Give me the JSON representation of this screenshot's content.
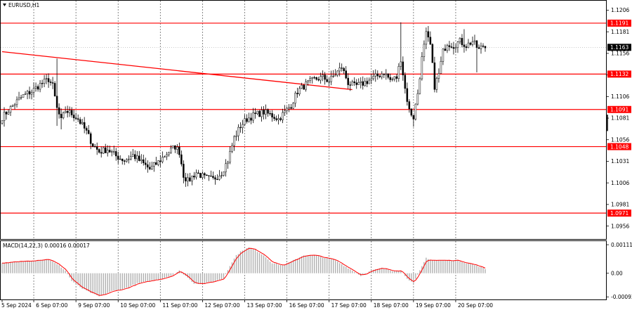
{
  "chart_data": {
    "type": "candlestick",
    "symbol_label": "EURUSD,H1",
    "price_axis": {
      "ylim": [
        1.0941,
        1.1217
      ],
      "ticks": [
        "1.1206",
        "1.1181",
        "1.1156",
        "1.1131",
        "1.1106",
        "1.1081",
        "1.1056",
        "1.1031",
        "1.1006",
        "1.0981",
        "1.0956"
      ],
      "tick_values": [
        1.1206,
        1.1181,
        1.1156,
        1.1131,
        1.1106,
        1.1081,
        1.1056,
        1.1031,
        1.1006,
        1.0981,
        1.0956
      ]
    },
    "current_price": {
      "label": "1.1163",
      "value": 1.1163
    },
    "x_axis": {
      "labels": [
        "5 Sep 2024",
        "6 Sep 07:00",
        "9 Sep 07:00",
        "10 Sep 07:00",
        "11 Sep 07:00",
        "12 Sep 07:00",
        "13 Sep 07:00",
        "16 Sep 07:00",
        "17 Sep 07:00",
        "18 Sep 07:00",
        "19 Sep 07:00",
        "20 Sep 07:00"
      ],
      "num_bars": 230,
      "label_bar_index": [
        0,
        15,
        35,
        55,
        75,
        95,
        115,
        135,
        155,
        175,
        195,
        215
      ]
    },
    "levels": [
      {
        "label": "1.1191",
        "value": 1.1191
      },
      {
        "label": "1.1132",
        "value": 1.1132
      },
      {
        "label": "1.1091",
        "value": 1.1091
      },
      {
        "label": "1.1048",
        "value": 1.1048
      },
      {
        "label": "1.0971",
        "value": 1.0971
      }
    ],
    "trendline": {
      "from": {
        "bar": 0,
        "price": 1.1158
      },
      "to": {
        "bar": 166,
        "price": 1.1114
      }
    },
    "price_path": [
      [
        0,
        1.1082
      ],
      [
        3,
        1.109
      ],
      [
        6,
        1.1098
      ],
      [
        10,
        1.1107
      ],
      [
        14,
        1.1112
      ],
      [
        18,
        1.112
      ],
      [
        22,
        1.1126
      ],
      [
        24,
        1.1118
      ],
      [
        26,
        1.1092
      ],
      [
        28,
        1.1078
      ],
      [
        30,
        1.109
      ],
      [
        33,
        1.1086
      ],
      [
        36,
        1.108
      ],
      [
        40,
        1.1065
      ],
      [
        43,
        1.105
      ],
      [
        46,
        1.1042
      ],
      [
        50,
        1.1045
      ],
      [
        54,
        1.1037
      ],
      [
        58,
        1.1032
      ],
      [
        62,
        1.1038
      ],
      [
        66,
        1.103
      ],
      [
        70,
        1.1022
      ],
      [
        74,
        1.103
      ],
      [
        78,
        1.104
      ],
      [
        82,
        1.1048
      ],
      [
        84,
        1.1042
      ],
      [
        86,
        1.1015
      ],
      [
        88,
        1.1008
      ],
      [
        92,
        1.1018
      ],
      [
        96,
        1.1012
      ],
      [
        100,
        1.101
      ],
      [
        104,
        1.1018
      ],
      [
        107,
        1.1032
      ],
      [
        110,
        1.1058
      ],
      [
        113,
        1.1072
      ],
      [
        116,
        1.108
      ],
      [
        120,
        1.1085
      ],
      [
        124,
        1.1088
      ],
      [
        128,
        1.1084
      ],
      [
        131,
        1.108
      ],
      [
        134,
        1.1088
      ],
      [
        137,
        1.1096
      ],
      [
        140,
        1.1112
      ],
      [
        144,
        1.112
      ],
      [
        148,
        1.1126
      ],
      [
        152,
        1.1128
      ],
      [
        155,
        1.1124
      ],
      [
        158,
        1.1132
      ],
      [
        161,
        1.114
      ],
      [
        164,
        1.1122
      ],
      [
        167,
        1.1118
      ],
      [
        170,
        1.112
      ],
      [
        174,
        1.1125
      ],
      [
        178,
        1.113
      ],
      [
        181,
        1.1134
      ],
      [
        184,
        1.1125
      ],
      [
        187,
        1.1128
      ],
      [
        189,
        1.115
      ],
      [
        191,
        1.1115
      ],
      [
        193,
        1.109
      ],
      [
        195,
        1.1082
      ],
      [
        197,
        1.111
      ],
      [
        199,
        1.115
      ],
      [
        201,
        1.1178
      ],
      [
        203,
        1.1165
      ],
      [
        205,
        1.1118
      ],
      [
        207,
        1.1132
      ],
      [
        209,
        1.1158
      ],
      [
        211,
        1.1168
      ],
      [
        214,
        1.1165
      ],
      [
        217,
        1.117
      ],
      [
        220,
        1.1165
      ],
      [
        223,
        1.117
      ],
      [
        226,
        1.116
      ],
      [
        228,
        1.1165
      ],
      [
        229,
        1.1163
      ]
    ],
    "spikes": [
      {
        "bar": 26,
        "high": 1.115,
        "low": 1.1072
      },
      {
        "bar": 28,
        "low": 1.1068
      },
      {
        "bar": 88,
        "low": 1.1002
      },
      {
        "bar": 189,
        "high": 1.1192
      },
      {
        "bar": 195,
        "low": 1.1071
      },
      {
        "bar": 201,
        "high": 1.1186
      },
      {
        "bar": 219,
        "high": 1.1184
      },
      {
        "bar": 225,
        "low": 1.1134
      }
    ],
    "macd": {
      "label": "MACD(14,22,3) 0.00016 0.00017",
      "ylim": [
        -0.00102,
        0.00125
      ],
      "ticks": [
        "0.00111",
        "0.00",
        "-0.00092"
      ],
      "tick_values": [
        0.00111,
        0.0,
        -0.00092
      ],
      "histogram_path": [
        [
          0,
          0.0004
        ],
        [
          8,
          0.00045
        ],
        [
          15,
          0.0005
        ],
        [
          22,
          0.00055
        ],
        [
          27,
          0.0003
        ],
        [
          30,
          0.0001
        ],
        [
          33,
          -0.0003
        ],
        [
          38,
          -0.0006
        ],
        [
          43,
          -0.0008
        ],
        [
          46,
          -0.0009
        ],
        [
          52,
          -0.0007
        ],
        [
          58,
          -0.0006
        ],
        [
          64,
          -0.0004
        ],
        [
          70,
          -0.0003
        ],
        [
          76,
          -0.0002
        ],
        [
          80,
          -0.0001
        ],
        [
          84,
          0.0001
        ],
        [
          87,
          -0.0001
        ],
        [
          91,
          -0.0004
        ],
        [
          96,
          -0.0004
        ],
        [
          101,
          -0.0003
        ],
        [
          105,
          -0.0002
        ],
        [
          108,
          0.0003
        ],
        [
          111,
          0.0007
        ],
        [
          114,
          0.0009
        ],
        [
          117,
          0.001
        ],
        [
          120,
          0.0009
        ],
        [
          124,
          0.0007
        ],
        [
          128,
          0.0004
        ],
        [
          133,
          0.0003
        ],
        [
          138,
          0.0005
        ],
        [
          143,
          0.0007
        ],
        [
          148,
          0.0007
        ],
        [
          153,
          0.0006
        ],
        [
          158,
          0.0005
        ],
        [
          162,
          0.0003
        ],
        [
          166,
          0.0001
        ],
        [
          170,
          -0.0001
        ],
        [
          175,
          0.0001
        ],
        [
          180,
          0.0002
        ],
        [
          185,
          0.0001
        ],
        [
          189,
          0.0001
        ],
        [
          192,
          -0.0002
        ],
        [
          195,
          -0.0004
        ],
        [
          198,
          0.0001
        ],
        [
          201,
          0.0006
        ],
        [
          204,
          0.0005
        ],
        [
          208,
          0.0005
        ],
        [
          212,
          0.0005
        ],
        [
          216,
          0.0005
        ],
        [
          220,
          0.0004
        ],
        [
          225,
          0.0003
        ],
        [
          229,
          0.00016
        ]
      ]
    }
  }
}
